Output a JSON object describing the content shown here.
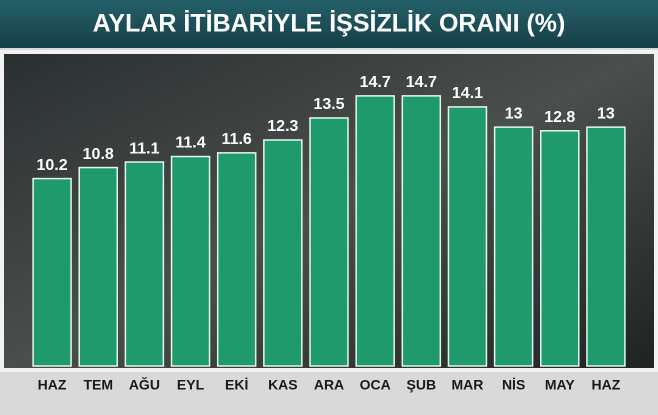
{
  "chart_data": {
    "type": "bar",
    "title": "AYLAR İTİBARİYLE İŞSİZLİK ORANI (%)",
    "categories": [
      "HAZ",
      "TEM",
      "AĞU",
      "EYL",
      "EKİ",
      "KAS",
      "ARA",
      "OCA",
      "ŞUB",
      "MAR",
      "NİS",
      "MAY",
      "HAZ"
    ],
    "values": [
      10.2,
      10.8,
      11.1,
      11.4,
      11.6,
      12.3,
      13.5,
      14.7,
      14.7,
      14.1,
      13,
      12.8,
      13
    ],
    "color": "#1e9a6c",
    "ylim": [
      0,
      16
    ]
  }
}
